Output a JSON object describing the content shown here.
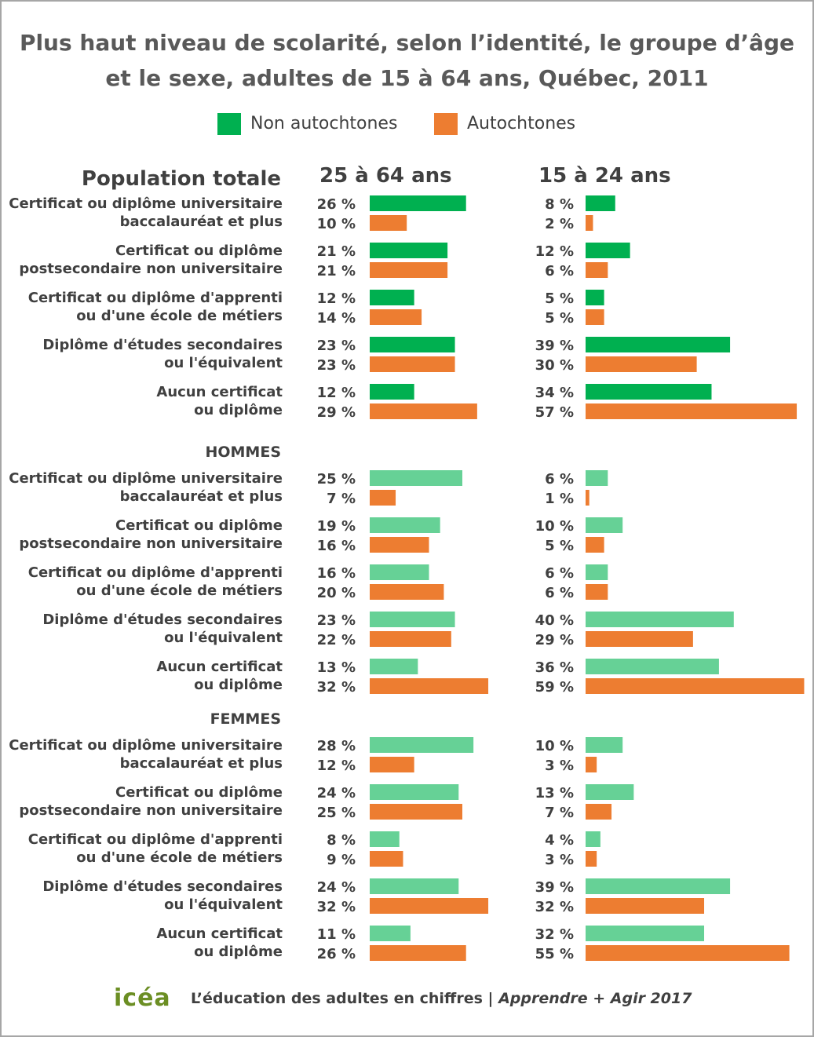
{
  "title_line1": "Plus haut niveau de scolarité, selon l’identité, le groupe d’âge",
  "title_line2": "et le sexe, adultes de 15 à 64 ans, Québec, 2011",
  "legend": [
    {
      "label": "Non autochtones",
      "color": "#00b050"
    },
    {
      "label": "Autochtones",
      "color": "#ed7d31"
    }
  ],
  "column_headers": {
    "left": "25 à 64 ans",
    "right": "15 à 24 ans"
  },
  "colors": {
    "non_autochtones_total": "#00b050",
    "non_autochtones_sexe": "#66d196",
    "autochtones": "#ed7d31"
  },
  "chart_data": {
    "type": "bar",
    "orientation": "horizontal",
    "series_names": [
      "Non autochtones",
      "Autochtones"
    ],
    "value_suffix": " %",
    "panels": [
      "25 à 64 ans",
      "15 à 24 ans"
    ],
    "sections": [
      {
        "name": "Population totale",
        "categories": [
          {
            "line1": "Certificat ou diplôme universitaire",
            "line2": "baccalauréat et plus",
            "age_25_64": {
              "non_autochtones": 26,
              "autochtones": 10
            },
            "age_15_24": {
              "non_autochtones": 8,
              "autochtones": 2
            }
          },
          {
            "line1": "Certificat ou diplôme",
            "line2": "postsecondaire non universitaire",
            "age_25_64": {
              "non_autochtones": 21,
              "autochtones": 21
            },
            "age_15_24": {
              "non_autochtones": 12,
              "autochtones": 6
            }
          },
          {
            "line1": "Certificat ou diplôme d'apprenti",
            "line2": "ou d'une école de métiers",
            "age_25_64": {
              "non_autochtones": 12,
              "autochtones": 14
            },
            "age_15_24": {
              "non_autochtones": 5,
              "autochtones": 5
            }
          },
          {
            "line1": "Diplôme d'études secondaires",
            "line2": "ou l'équivalent",
            "age_25_64": {
              "non_autochtones": 23,
              "autochtones": 23
            },
            "age_15_24": {
              "non_autochtones": 39,
              "autochtones": 30
            }
          },
          {
            "line1": "Aucun certificat",
            "line2": "ou diplôme",
            "age_25_64": {
              "non_autochtones": 12,
              "autochtones": 29
            },
            "age_15_24": {
              "non_autochtones": 34,
              "autochtones": 57
            }
          }
        ]
      },
      {
        "name": "HOMMES",
        "categories": [
          {
            "line1": "Certificat ou diplôme universitaire",
            "line2": "baccalauréat et plus",
            "age_25_64": {
              "non_autochtones": 25,
              "autochtones": 7
            },
            "age_15_24": {
              "non_autochtones": 6,
              "autochtones": 1
            }
          },
          {
            "line1": "Certificat ou diplôme",
            "line2": "postsecondaire non universitaire",
            "age_25_64": {
              "non_autochtones": 19,
              "autochtones": 16
            },
            "age_15_24": {
              "non_autochtones": 10,
              "autochtones": 5
            }
          },
          {
            "line1": "Certificat ou diplôme d'apprenti",
            "line2": "ou d'une école de métiers",
            "age_25_64": {
              "non_autochtones": 16,
              "autochtones": 20
            },
            "age_15_24": {
              "non_autochtones": 6,
              "autochtones": 6
            }
          },
          {
            "line1": "Diplôme d'études secondaires",
            "line2": "ou l'équivalent",
            "age_25_64": {
              "non_autochtones": 23,
              "autochtones": 22
            },
            "age_15_24": {
              "non_autochtones": 40,
              "autochtones": 29
            }
          },
          {
            "line1": "Aucun certificat",
            "line2": "ou diplôme",
            "age_25_64": {
              "non_autochtones": 13,
              "autochtones": 32
            },
            "age_15_24": {
              "non_autochtones": 36,
              "autochtones": 59
            }
          }
        ]
      },
      {
        "name": "FEMMES",
        "categories": [
          {
            "line1": "Certificat ou diplôme universitaire",
            "line2": "baccalauréat et plus",
            "age_25_64": {
              "non_autochtones": 28,
              "autochtones": 12
            },
            "age_15_24": {
              "non_autochtones": 10,
              "autochtones": 3
            }
          },
          {
            "line1": "Certificat ou diplôme",
            "line2": "postsecondaire non universitaire",
            "age_25_64": {
              "non_autochtones": 24,
              "autochtones": 25
            },
            "age_15_24": {
              "non_autochtones": 13,
              "autochtones": 7
            }
          },
          {
            "line1": "Certificat ou diplôme d'apprenti",
            "line2": "ou d'une école de métiers",
            "age_25_64": {
              "non_autochtones": 8,
              "autochtones": 9
            },
            "age_15_24": {
              "non_autochtones": 4,
              "autochtones": 3
            }
          },
          {
            "line1": "Diplôme d'études secondaires",
            "line2": "ou l'équivalent",
            "age_25_64": {
              "non_autochtones": 24,
              "autochtones": 32
            },
            "age_15_24": {
              "non_autochtones": 39,
              "autochtones": 32
            }
          },
          {
            "line1": "Aucun certificat",
            "line2": "ou diplôme",
            "age_25_64": {
              "non_autochtones": 11,
              "autochtones": 26
            },
            "age_15_24": {
              "non_autochtones": 32,
              "autochtones": 55
            }
          }
        ]
      }
    ]
  },
  "footer": {
    "logo": "icéa",
    "text": "L’éducation des adultes en chiffres | ",
    "text_italic": "Apprendre + Agir 2017"
  }
}
